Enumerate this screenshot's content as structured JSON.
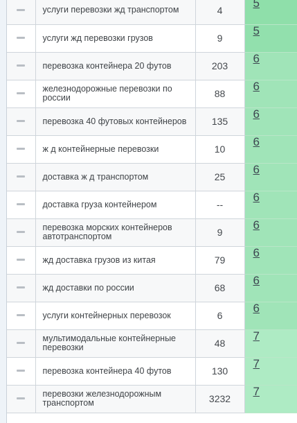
{
  "rows": [
    {
      "phrase": "услуги перевозки жд транспортом",
      "count": "4",
      "score": "5",
      "score_color": "#8fdfaa"
    },
    {
      "phrase": "услуги жд перевозки грузов",
      "count": "9",
      "score": "5",
      "score_color": "#92e0ad"
    },
    {
      "phrase": "перевозка контейнера 20 футов",
      "count": "203",
      "score": "6",
      "score_color": "#a0e4b8"
    },
    {
      "phrase": "железнодорожные перевозки по россии",
      "count": "88",
      "score": "6",
      "score_color": "#a0e4b8"
    },
    {
      "phrase": "перевозка 40 футовых контейнеров",
      "count": "135",
      "score": "6",
      "score_color": "#a0e4b8"
    },
    {
      "phrase": "ж д контейнерные перевозки",
      "count": "10",
      "score": "6",
      "score_color": "#a0e4b8"
    },
    {
      "phrase": "доставка ж д транспортом",
      "count": "25",
      "score": "6",
      "score_color": "#a0e4b8"
    },
    {
      "phrase": "доставка груза контейнером",
      "count": "--",
      "score": "6",
      "score_color": "#a0e4b8"
    },
    {
      "phrase": "перевозка морских контейнеров автотранспортом",
      "count": "9",
      "score": "6",
      "score_color": "#a0e4b8"
    },
    {
      "phrase": "жд доставка грузов из китая",
      "count": "79",
      "score": "6",
      "score_color": "#a0e4b8"
    },
    {
      "phrase": "жд доставки по россии",
      "count": "68",
      "score": "6",
      "score_color": "#a0e4b8"
    },
    {
      "phrase": "услуги контейнерных перевозок",
      "count": "6",
      "score": "6",
      "score_color": "#a0e4b8"
    },
    {
      "phrase": "мультимодальные контейнерные перевозки",
      "count": "48",
      "score": "7",
      "score_color": "#aeebc4"
    },
    {
      "phrase": "перевозка контейнера 40 футов",
      "count": "130",
      "score": "7",
      "score_color": "#aeebc4"
    },
    {
      "phrase": "перевозки железнодорожным транспортом",
      "count": "3232",
      "score": "7",
      "score_color": "#aeebc4"
    }
  ]
}
